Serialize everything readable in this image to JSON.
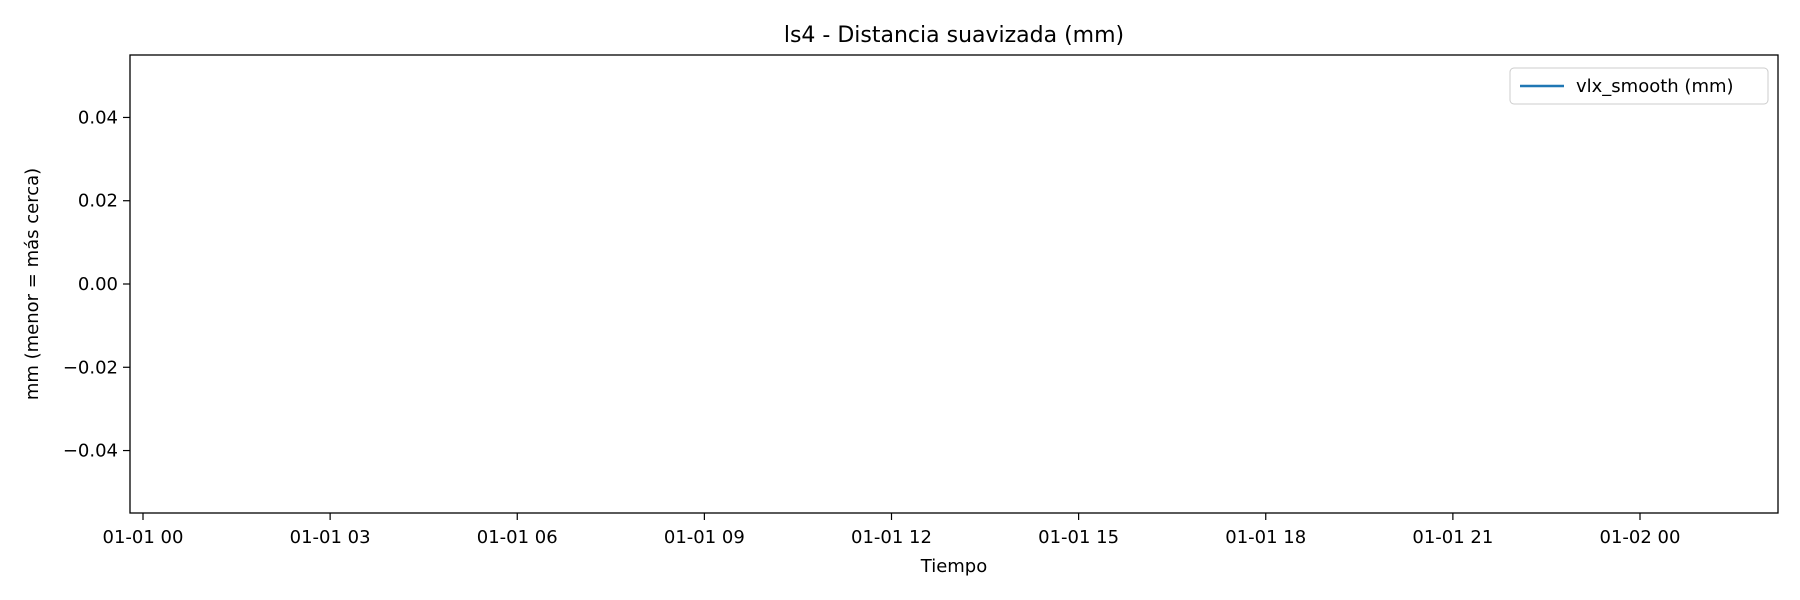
{
  "chart_data": {
    "type": "line",
    "title": "ls4 - Distancia suavizada (mm)",
    "xlabel": "Tiempo",
    "ylabel": "mm (menor = más cerca)",
    "x_tick_labels": [
      "01-01 00",
      "01-01 03",
      "01-01 06",
      "01-01 09",
      "01-01 12",
      "01-01 15",
      "01-01 18",
      "01-01 21",
      "01-02 00"
    ],
    "y_tick_labels": [
      "0.04",
      "0.02",
      "0.00",
      "−0.02",
      "−0.04"
    ],
    "y_ticks": [
      0.04,
      0.02,
      0.0,
      -0.02,
      -0.04
    ],
    "ylim": [
      -0.055,
      0.055
    ],
    "grid": false,
    "legend_position": "upper right",
    "series": [
      {
        "name": "vlx_smooth (mm)",
        "color": "#1f77b4",
        "x": [],
        "y": []
      }
    ]
  }
}
